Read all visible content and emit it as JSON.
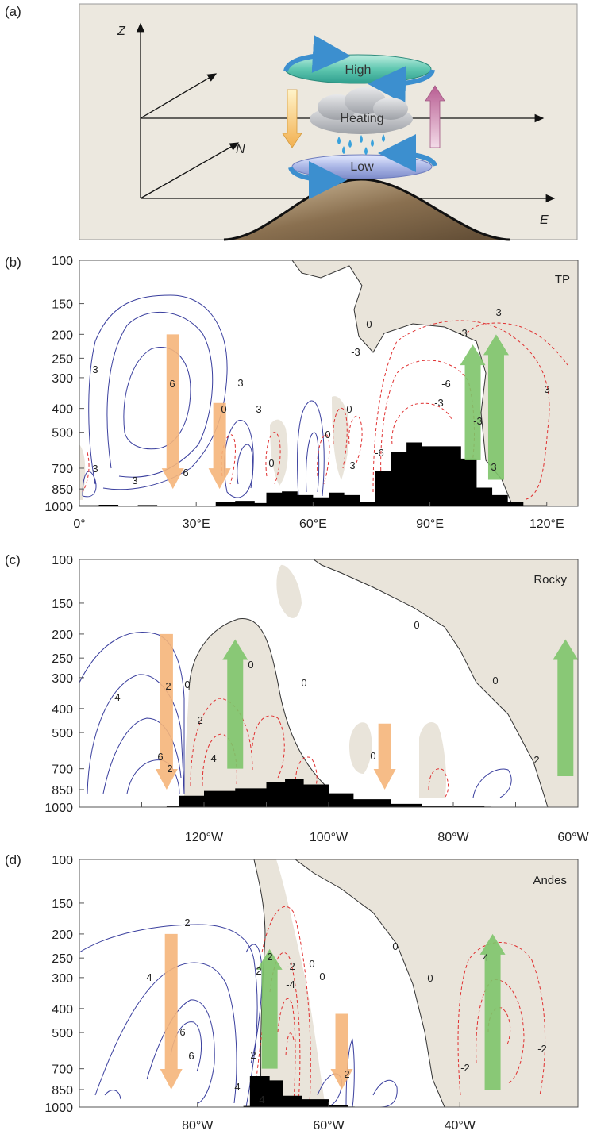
{
  "panels": [
    {
      "id": "a",
      "label": "(a)",
      "schematic": {
        "axis_z": "Z",
        "axis_n": "N",
        "axis_e": "E",
        "high": "High",
        "heating": "Heating",
        "low": "Low",
        "colors": {
          "background": "#ece8df",
          "high": "#5fc7b0",
          "low": "#aab6e6",
          "down_arrow": "#f2c06a",
          "up_arrow": "#c87ea8",
          "cloud": "#b9bcc2",
          "rain": "#3aa2dc",
          "terrain": "#8a7050"
        }
      }
    },
    {
      "id": "b",
      "label": "(b)",
      "region": "TP",
      "yaxis_ticks": [
        "100",
        "150",
        "200",
        "250",
        "300",
        "400",
        "500",
        "700",
        "850",
        "1000"
      ],
      "xaxis_ticks": [
        "0°",
        "30°E",
        "60°E",
        "90°E",
        "120°E"
      ],
      "contour_labels": [
        "3",
        "6",
        "6",
        "3",
        "3",
        "3",
        "3",
        "0",
        "0",
        "0",
        "0",
        "3",
        "0",
        "-3",
        "-6",
        "-6",
        "-3",
        "-3",
        "-3",
        "-3",
        "-3",
        "3"
      ],
      "arrows": [
        {
          "kind": "descent",
          "color": "#f5b57a",
          "lon": 24,
          "top": 200,
          "bottom": 850
        },
        {
          "kind": "descent",
          "color": "#f5b57a",
          "lon": 36,
          "top": 380,
          "bottom": 850
        },
        {
          "kind": "ascent",
          "color": "#7ec46a",
          "lon": 101,
          "top": 220,
          "bottom": 650
        },
        {
          "kind": "ascent",
          "color": "#7ec46a",
          "lon": 107,
          "top": 200,
          "bottom": 780
        }
      ]
    },
    {
      "id": "c",
      "label": "(c)",
      "region": "Rocky",
      "yaxis_ticks": [
        "100",
        "150",
        "200",
        "250",
        "300",
        "400",
        "500",
        "700",
        "850",
        "1000"
      ],
      "xaxis_ticks": [
        "120°W",
        "100°W",
        "80°W",
        "60°W"
      ],
      "contour_labels": [
        "4",
        "2",
        "6",
        "2",
        "-2",
        "-4",
        "0",
        "0",
        "0",
        "0",
        "0",
        "0",
        "2"
      ],
      "arrows": [
        {
          "kind": "descent",
          "color": "#f5b57a",
          "lon": -126,
          "top": 200,
          "bottom": 850
        },
        {
          "kind": "ascent",
          "color": "#7ec46a",
          "lon": -115,
          "top": 210,
          "bottom": 700
        },
        {
          "kind": "descent",
          "color": "#f5b57a",
          "lon": -91,
          "top": 460,
          "bottom": 850
        },
        {
          "kind": "ascent",
          "color": "#7ec46a",
          "lon": -62,
          "top": 210,
          "bottom": 750
        }
      ]
    },
    {
      "id": "d",
      "label": "(d)",
      "region": "Andes",
      "yaxis_ticks": [
        "100",
        "150",
        "200",
        "250",
        "300",
        "400",
        "500",
        "700",
        "850",
        "1000"
      ],
      "xaxis_ticks": [
        "80°W",
        "60°W",
        "40°W"
      ],
      "contour_labels": [
        "2",
        "4",
        "6",
        "6",
        "2",
        "4",
        "4",
        "2",
        "-2",
        "-4",
        "0",
        "0",
        "0",
        "0",
        "-2",
        "-2",
        "2",
        "2",
        "4"
      ],
      "arrows": [
        {
          "kind": "descent",
          "color": "#f5b57a",
          "lon": -84,
          "top": 200,
          "bottom": 850
        },
        {
          "kind": "ascent",
          "color": "#7ec46a",
          "lon": -69,
          "top": 230,
          "bottom": 700
        },
        {
          "kind": "descent",
          "color": "#f5b57a",
          "lon": -58,
          "top": 420,
          "bottom": 850
        },
        {
          "kind": "ascent",
          "color": "#7ec46a",
          "lon": -35,
          "top": 200,
          "bottom": 850
        }
      ]
    }
  ],
  "chart_data": [
    {
      "type": "heatmap",
      "region": "TP",
      "xlabel": "",
      "ylabel": "",
      "x_ticks": [
        "0°",
        "30°E",
        "60°E",
        "90°E",
        "120°E"
      ],
      "y_ticks": [
        100,
        150,
        200,
        250,
        300,
        400,
        500,
        700,
        850,
        1000
      ],
      "xlim": [
        0,
        128
      ],
      "ylim": [
        1000,
        100
      ],
      "log_pressure_axis": true,
      "topography": [
        [
          0,
          990
        ],
        [
          5,
          985
        ],
        [
          10,
          995
        ],
        [
          15,
          988
        ],
        [
          20,
          995
        ],
        [
          35,
          960
        ],
        [
          40,
          950
        ],
        [
          45,
          970
        ],
        [
          48,
          880
        ],
        [
          52,
          870
        ],
        [
          56,
          900
        ],
        [
          60,
          920
        ],
        [
          64,
          880
        ],
        [
          68,
          900
        ],
        [
          72,
          960
        ],
        [
          76,
          720
        ],
        [
          80,
          600
        ],
        [
          84,
          550
        ],
        [
          88,
          570
        ],
        [
          94,
          570
        ],
        [
          98,
          640
        ],
        [
          102,
          840
        ],
        [
          106,
          900
        ],
        [
          110,
          960
        ],
        [
          114,
          990
        ],
        [
          120,
          998
        ]
      ],
      "contour_interval": 3,
      "arrows": [
        "descent 24°E",
        "descent 36°E",
        "ascent 101°E",
        "ascent 107°E"
      ]
    },
    {
      "type": "heatmap",
      "region": "Rocky",
      "xlabel": "",
      "ylabel": "",
      "x_ticks": [
        "120°W",
        "100°W",
        "80°W",
        "60°W"
      ],
      "y_ticks": [
        100,
        150,
        200,
        250,
        300,
        400,
        500,
        700,
        850,
        1000
      ],
      "xlim": [
        -140,
        -60
      ],
      "ylim": [
        1000,
        100
      ],
      "log_pressure_axis": true,
      "topography": [
        [
          -126,
          990
        ],
        [
          -124,
          900
        ],
        [
          -120,
          860
        ],
        [
          -115,
          840
        ],
        [
          -110,
          790
        ],
        [
          -107,
          770
        ],
        [
          -104,
          810
        ],
        [
          -100,
          880
        ],
        [
          -96,
          930
        ],
        [
          -90,
          970
        ],
        [
          -85,
          985
        ],
        [
          -80,
          990
        ],
        [
          -75,
          995
        ]
      ],
      "contour_interval": 2,
      "arrows": [
        "descent 126°W",
        "ascent 115°W",
        "descent 91°W",
        "ascent 62°W"
      ]
    },
    {
      "type": "heatmap",
      "region": "Andes",
      "xlabel": "",
      "ylabel": "",
      "x_ticks": [
        "80°W",
        "60°W",
        "40°W"
      ],
      "y_ticks": [
        100,
        150,
        200,
        250,
        300,
        400,
        500,
        700,
        850,
        1000
      ],
      "xlim": [
        -98,
        -22
      ],
      "ylim": [
        1000,
        100
      ],
      "log_pressure_axis": true,
      "topography": [
        [
          -73,
          990
        ],
        [
          -72,
          750
        ],
        [
          -69,
          780
        ],
        [
          -67,
          900
        ],
        [
          -64,
          930
        ],
        [
          -60,
          980
        ],
        [
          -57,
          995
        ]
      ],
      "contour_interval": 2,
      "arrows": [
        "descent 84°W",
        "ascent 69°W",
        "descent 58°W",
        "ascent 35°W"
      ]
    }
  ]
}
